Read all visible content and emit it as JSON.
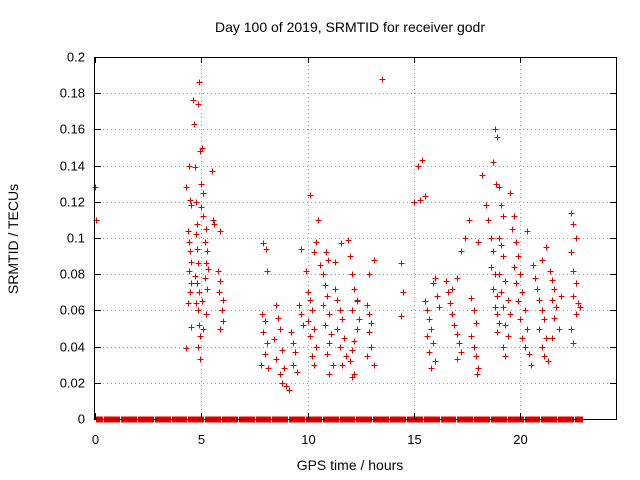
{
  "chart_data": {
    "type": "scatter",
    "title": "Day 100 of 2019, SRMTID for receiver godr",
    "xlabel": "GPS time / hours",
    "ylabel": "SRMTID / TECUs",
    "xlim": [
      0,
      24.5
    ],
    "ylim": [
      0,
      0.2
    ],
    "xticks": [
      0,
      5,
      10,
      15,
      20
    ],
    "xtick_labels": [
      "0",
      "5",
      "10",
      "15",
      "20"
    ],
    "yticks": [
      0,
      0.02,
      0.04,
      0.06,
      0.08,
      0.1,
      0.12,
      0.14,
      0.16,
      0.18,
      0.2
    ],
    "ytick_labels": [
      "0",
      "0.02",
      "0.04",
      "0.06",
      "0.08",
      "0.1",
      "0.12",
      "0.14",
      "0.16",
      "0.18",
      "0.2"
    ],
    "grid": true,
    "marker": "+",
    "color": "#e00000",
    "zero_band": {
      "x_start": 0.05,
      "x_end": 22.9,
      "step": 0.05,
      "y": 0
    },
    "series": [
      {
        "name": "SRMTID",
        "points": [
          [
            0.0,
            0.128
          ],
          [
            0.05,
            0.11
          ],
          [
            4.3,
            0.128
          ],
          [
            4.4,
            0.14
          ],
          [
            4.45,
            0.121
          ],
          [
            4.5,
            0.118
          ],
          [
            4.35,
            0.104
          ],
          [
            4.4,
            0.098
          ],
          [
            4.45,
            0.093
          ],
          [
            4.5,
            0.087
          ],
          [
            4.4,
            0.082
          ],
          [
            4.5,
            0.075
          ],
          [
            4.45,
            0.07
          ],
          [
            4.35,
            0.064
          ],
          [
            4.5,
            0.051
          ],
          [
            4.3,
            0.039
          ],
          [
            4.6,
            0.176
          ],
          [
            4.65,
            0.163
          ],
          [
            4.7,
            0.139
          ],
          [
            4.75,
            0.12
          ],
          [
            4.8,
            0.108
          ],
          [
            4.75,
            0.102
          ],
          [
            4.8,
            0.094
          ],
          [
            4.85,
            0.086
          ],
          [
            4.7,
            0.079
          ],
          [
            4.8,
            0.075
          ],
          [
            4.9,
            0.07
          ],
          [
            4.75,
            0.064
          ],
          [
            4.85,
            0.06
          ],
          [
            4.9,
            0.052
          ],
          [
            4.95,
            0.046
          ],
          [
            4.85,
            0.04
          ],
          [
            4.95,
            0.033
          ],
          [
            4.9,
            0.186
          ],
          [
            4.85,
            0.174
          ],
          [
            4.95,
            0.148
          ],
          [
            5.05,
            0.15
          ],
          [
            5.0,
            0.13
          ],
          [
            5.1,
            0.125
          ],
          [
            5.0,
            0.117
          ],
          [
            5.1,
            0.112
          ],
          [
            5.2,
            0.105
          ],
          [
            5.15,
            0.098
          ],
          [
            5.25,
            0.093
          ],
          [
            5.2,
            0.086
          ],
          [
            5.3,
            0.083
          ],
          [
            5.15,
            0.078
          ],
          [
            5.25,
            0.072
          ],
          [
            5.05,
            0.065
          ],
          [
            5.2,
            0.058
          ],
          [
            5.1,
            0.05
          ],
          [
            5.5,
            0.137
          ],
          [
            5.55,
            0.11
          ],
          [
            5.6,
            0.108
          ],
          [
            5.9,
            0.104
          ],
          [
            5.8,
            0.082
          ],
          [
            5.9,
            0.076
          ],
          [
            5.85,
            0.07
          ],
          [
            6.0,
            0.066
          ],
          [
            5.95,
            0.06
          ],
          [
            6.0,
            0.054
          ],
          [
            5.9,
            0.05
          ],
          [
            7.9,
            0.097
          ],
          [
            8.05,
            0.094
          ],
          [
            8.1,
            0.082
          ],
          [
            7.85,
            0.058
          ],
          [
            8.0,
            0.054
          ],
          [
            7.9,
            0.048
          ],
          [
            8.1,
            0.042
          ],
          [
            8.0,
            0.036
          ],
          [
            7.8,
            0.03
          ],
          [
            8.15,
            0.028
          ],
          [
            8.5,
            0.063
          ],
          [
            8.6,
            0.056
          ],
          [
            8.7,
            0.05
          ],
          [
            8.4,
            0.044
          ],
          [
            8.8,
            0.038
          ],
          [
            8.5,
            0.033
          ],
          [
            8.9,
            0.028
          ],
          [
            8.7,
            0.025
          ],
          [
            8.8,
            0.02
          ],
          [
            9.0,
            0.018
          ],
          [
            9.1,
            0.016
          ],
          [
            9.2,
            0.048
          ],
          [
            9.3,
            0.042
          ],
          [
            9.4,
            0.037
          ],
          [
            9.3,
            0.03
          ],
          [
            9.5,
            0.026
          ],
          [
            9.6,
            0.063
          ],
          [
            9.7,
            0.058
          ],
          [
            9.8,
            0.052
          ],
          [
            9.7,
            0.094
          ],
          [
            9.9,
            0.082
          ],
          [
            10.0,
            0.07
          ],
          [
            10.1,
            0.066
          ],
          [
            10.2,
            0.06
          ],
          [
            10.0,
            0.054
          ],
          [
            10.3,
            0.05
          ],
          [
            10.1,
            0.046
          ],
          [
            10.4,
            0.04
          ],
          [
            10.2,
            0.035
          ],
          [
            10.3,
            0.03
          ],
          [
            10.1,
            0.124
          ],
          [
            10.5,
            0.11
          ],
          [
            10.4,
            0.098
          ],
          [
            10.3,
            0.092
          ],
          [
            10.6,
            0.085
          ],
          [
            10.7,
            0.08
          ],
          [
            10.8,
            0.074
          ],
          [
            10.9,
            0.068
          ],
          [
            10.7,
            0.063
          ],
          [
            11.0,
            0.058
          ],
          [
            10.8,
            0.052
          ],
          [
            11.1,
            0.047
          ],
          [
            11.0,
            0.042
          ],
          [
            10.9,
            0.036
          ],
          [
            11.2,
            0.03
          ],
          [
            11.0,
            0.025
          ],
          [
            10.85,
            0.092
          ],
          [
            10.95,
            0.088
          ],
          [
            11.3,
            0.072
          ],
          [
            11.4,
            0.066
          ],
          [
            11.5,
            0.06
          ],
          [
            11.6,
            0.055
          ],
          [
            11.4,
            0.05
          ],
          [
            11.7,
            0.045
          ],
          [
            11.5,
            0.04
          ],
          [
            11.8,
            0.035
          ],
          [
            11.6,
            0.03
          ],
          [
            11.3,
            0.087
          ],
          [
            11.55,
            0.097
          ],
          [
            11.9,
            0.099
          ],
          [
            12.0,
            0.09
          ],
          [
            12.1,
            0.08
          ],
          [
            12.2,
            0.072
          ],
          [
            12.3,
            0.066
          ],
          [
            12.1,
            0.06
          ],
          [
            12.4,
            0.055
          ],
          [
            12.3,
            0.05
          ],
          [
            12.2,
            0.043
          ],
          [
            12.1,
            0.038
          ],
          [
            12.0,
            0.032
          ],
          [
            12.2,
            0.025
          ],
          [
            12.1,
            0.023
          ],
          [
            12.3,
            0.065
          ],
          [
            12.8,
            0.063
          ],
          [
            12.9,
            0.058
          ],
          [
            13.0,
            0.053
          ],
          [
            12.9,
            0.048
          ],
          [
            13.0,
            0.04
          ],
          [
            12.8,
            0.035
          ],
          [
            13.1,
            0.03
          ],
          [
            12.9,
            0.08
          ],
          [
            13.1,
            0.088
          ],
          [
            13.5,
            0.188
          ],
          [
            14.4,
            0.086
          ],
          [
            14.5,
            0.07
          ],
          [
            14.4,
            0.057
          ],
          [
            15.2,
            0.14
          ],
          [
            15.4,
            0.143
          ],
          [
            15.3,
            0.121
          ],
          [
            15.5,
            0.123
          ],
          [
            15.0,
            0.12
          ],
          [
            15.5,
            0.065
          ],
          [
            15.6,
            0.06
          ],
          [
            15.7,
            0.055
          ],
          [
            15.8,
            0.05
          ],
          [
            15.6,
            0.046
          ],
          [
            15.9,
            0.042
          ],
          [
            15.7,
            0.037
          ],
          [
            16.0,
            0.032
          ],
          [
            15.8,
            0.028
          ],
          [
            15.9,
            0.075
          ],
          [
            16.0,
            0.078
          ],
          [
            16.1,
            0.068
          ],
          [
            16.2,
            0.062
          ],
          [
            16.5,
            0.076
          ],
          [
            16.6,
            0.07
          ],
          [
            16.7,
            0.064
          ],
          [
            16.8,
            0.058
          ],
          [
            16.9,
            0.052
          ],
          [
            17.0,
            0.047
          ],
          [
            17.1,
            0.042
          ],
          [
            17.2,
            0.037
          ],
          [
            17.0,
            0.033
          ],
          [
            16.8,
            0.072
          ],
          [
            17.0,
            0.078
          ],
          [
            17.2,
            0.093
          ],
          [
            17.4,
            0.1
          ],
          [
            17.6,
            0.11
          ],
          [
            17.7,
            0.067
          ],
          [
            17.8,
            0.06
          ],
          [
            17.9,
            0.053
          ],
          [
            17.7,
            0.046
          ],
          [
            17.8,
            0.04
          ],
          [
            17.9,
            0.035
          ],
          [
            18.0,
            0.028
          ],
          [
            17.95,
            0.025
          ],
          [
            18.0,
            0.098
          ],
          [
            18.2,
            0.135
          ],
          [
            18.4,
            0.118
          ],
          [
            18.5,
            0.11
          ],
          [
            18.6,
            0.1
          ],
          [
            18.7,
            0.093
          ],
          [
            18.6,
            0.084
          ],
          [
            18.8,
            0.08
          ],
          [
            18.7,
            0.072
          ],
          [
            18.9,
            0.068
          ],
          [
            18.8,
            0.062
          ],
          [
            18.9,
            0.058
          ],
          [
            19.0,
            0.053
          ],
          [
            18.9,
            0.048
          ],
          [
            18.8,
            0.16
          ],
          [
            18.9,
            0.156
          ],
          [
            18.7,
            0.142
          ],
          [
            18.85,
            0.13
          ],
          [
            19.0,
            0.128
          ],
          [
            19.1,
            0.118
          ],
          [
            19.2,
            0.112
          ],
          [
            19.0,
            0.1
          ],
          [
            19.1,
            0.096
          ],
          [
            19.2,
            0.09
          ],
          [
            19.0,
            0.08
          ],
          [
            19.3,
            0.076
          ],
          [
            19.1,
            0.07
          ],
          [
            19.4,
            0.066
          ],
          [
            19.2,
            0.062
          ],
          [
            19.5,
            0.058
          ],
          [
            19.3,
            0.052
          ],
          [
            19.4,
            0.046
          ],
          [
            19.2,
            0.04
          ],
          [
            19.3,
            0.035
          ],
          [
            19.5,
            0.125
          ],
          [
            19.7,
            0.112
          ],
          [
            19.6,
            0.105
          ],
          [
            19.8,
            0.098
          ],
          [
            19.9,
            0.09
          ],
          [
            19.7,
            0.084
          ],
          [
            20.0,
            0.08
          ],
          [
            19.8,
            0.075
          ],
          [
            20.1,
            0.07
          ],
          [
            19.9,
            0.065
          ],
          [
            20.2,
            0.06
          ],
          [
            20.0,
            0.055
          ],
          [
            20.3,
            0.05
          ],
          [
            20.1,
            0.045
          ],
          [
            20.2,
            0.04
          ],
          [
            20.4,
            0.036
          ],
          [
            20.5,
            0.03
          ],
          [
            20.3,
            0.104
          ],
          [
            20.6,
            0.085
          ],
          [
            20.7,
            0.078
          ],
          [
            20.8,
            0.072
          ],
          [
            20.9,
            0.066
          ],
          [
            21.0,
            0.06
          ],
          [
            21.1,
            0.055
          ],
          [
            20.9,
            0.05
          ],
          [
            21.2,
            0.045
          ],
          [
            21.0,
            0.04
          ],
          [
            21.1,
            0.035
          ],
          [
            21.3,
            0.032
          ],
          [
            21.0,
            0.088
          ],
          [
            21.2,
            0.095
          ],
          [
            21.4,
            0.082
          ],
          [
            21.5,
            0.077
          ],
          [
            21.6,
            0.072
          ],
          [
            21.5,
            0.066
          ],
          [
            21.7,
            0.062
          ],
          [
            21.6,
            0.056
          ],
          [
            21.8,
            0.05
          ],
          [
            21.5,
            0.045
          ],
          [
            21.9,
            0.068
          ],
          [
            22.4,
            0.114
          ],
          [
            22.5,
            0.108
          ],
          [
            22.6,
            0.1
          ],
          [
            22.4,
            0.092
          ],
          [
            22.5,
            0.082
          ],
          [
            22.6,
            0.075
          ],
          [
            22.5,
            0.068
          ],
          [
            22.7,
            0.064
          ],
          [
            22.6,
            0.058
          ],
          [
            22.4,
            0.05
          ],
          [
            22.5,
            0.042
          ],
          [
            22.8,
            0.062
          ]
        ]
      }
    ]
  }
}
